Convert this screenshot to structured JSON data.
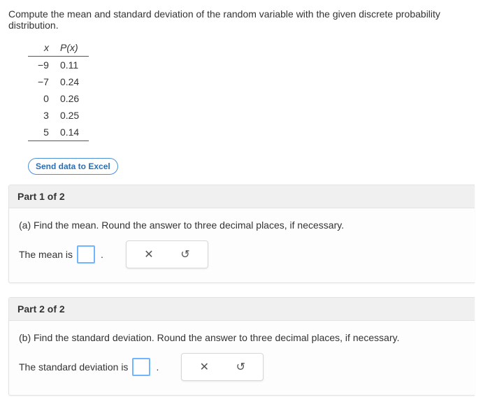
{
  "prompt": "Compute the mean and standard deviation of the random variable with the given discrete probability distribution.",
  "table": {
    "header_x": "x",
    "header_p_prefix": "P",
    "header_p_var": "x",
    "rows": [
      {
        "x": "−9",
        "p": "0.11"
      },
      {
        "x": "−7",
        "p": "0.24"
      },
      {
        "x": "0",
        "p": "0.26"
      },
      {
        "x": "3",
        "p": "0.25"
      },
      {
        "x": "5",
        "p": "0.14"
      }
    ]
  },
  "send_button": "Send data to Excel",
  "parts": {
    "p1": {
      "title": "Part 1 of 2",
      "question": "(a) Find the mean. Round the answer to three decimal places, if necessary.",
      "answer_label": "The mean is"
    },
    "p2": {
      "title": "Part 2 of 2",
      "question": "(b) Find the standard deviation. Round the answer to three decimal places, if necessary.",
      "answer_label": "The standard deviation is"
    }
  },
  "icons": {
    "clear": "✕",
    "reset": "↺"
  },
  "colors": {
    "accent": "#6fb6ff",
    "link": "#2b6fb3",
    "border": "#e3e3e3",
    "header_bg": "#f0f0f0"
  }
}
